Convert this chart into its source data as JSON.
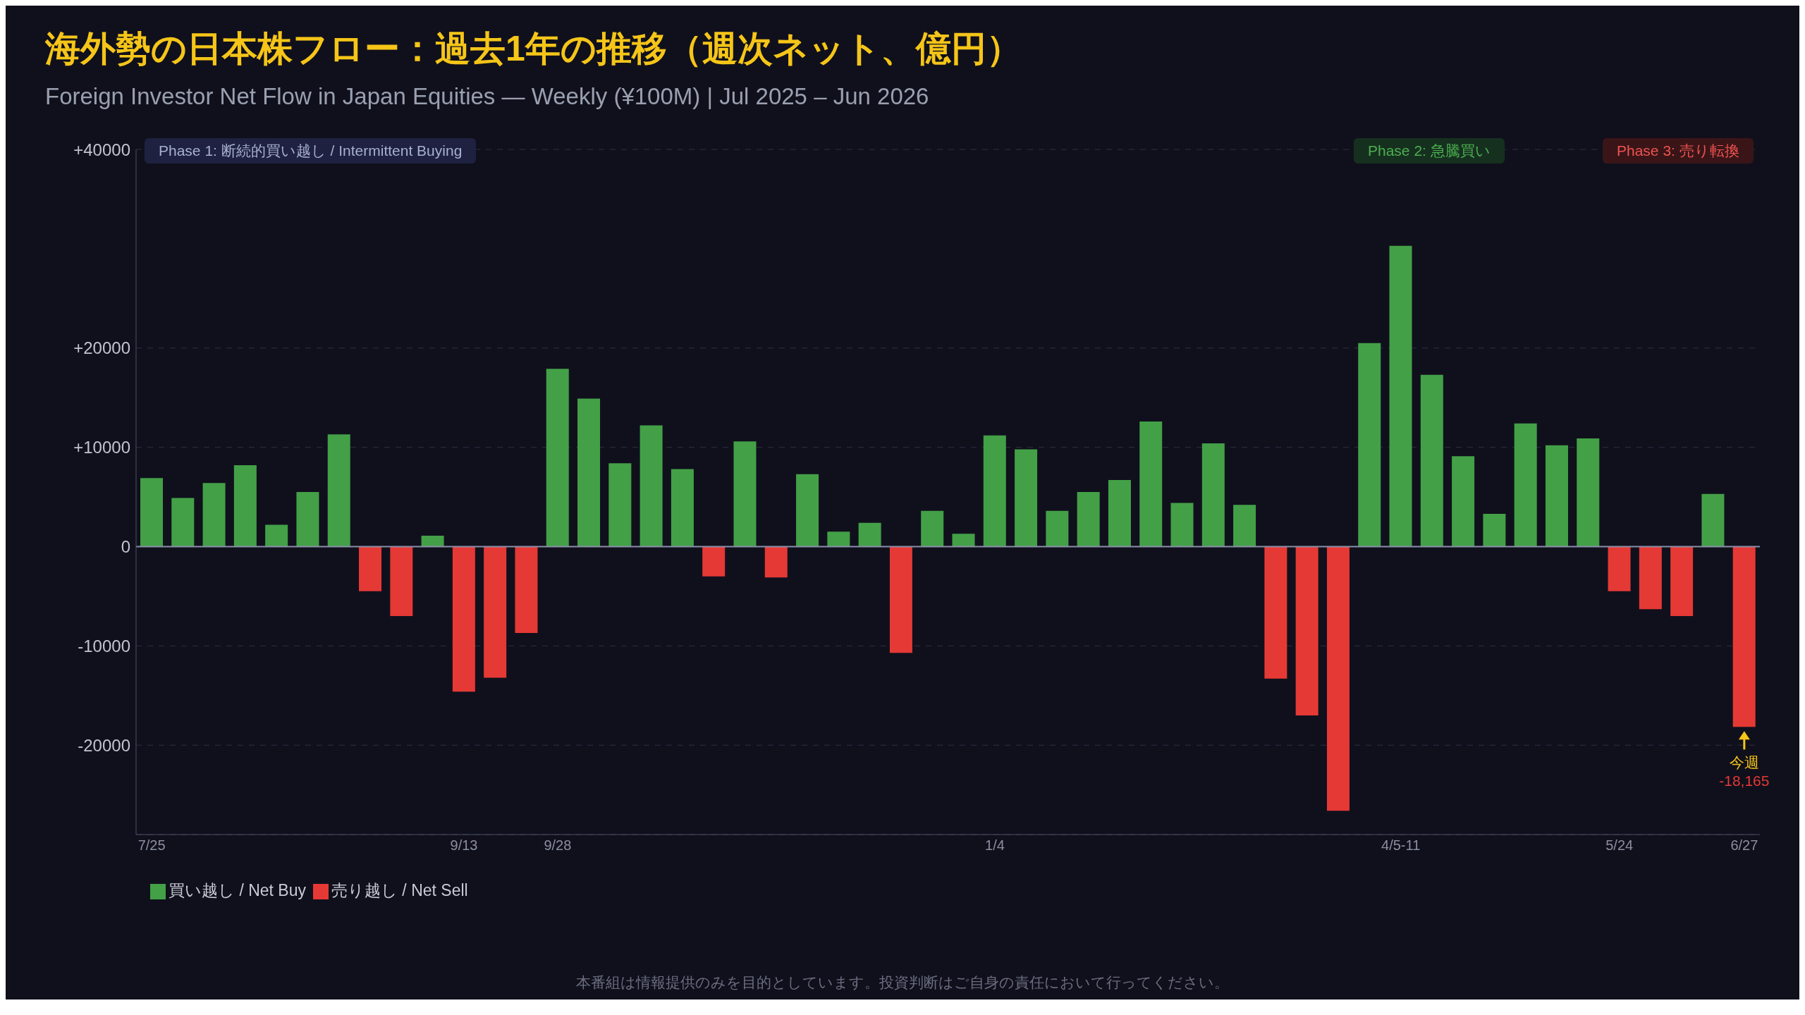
{
  "chart_data": {
    "type": "bar",
    "title": "海外勢の日本株フロー：過去1年の推移（週次ネット、億円）",
    "subtitle": "Foreign Investor Net Flow in Japan Equities — Weekly (¥100M) | Jul 2025 – Jun 2026",
    "categories": [
      "7/25",
      null,
      null,
      null,
      null,
      null,
      null,
      null,
      null,
      null,
      "9/13",
      null,
      null,
      "9/28",
      null,
      null,
      null,
      null,
      null,
      null,
      null,
      null,
      null,
      null,
      null,
      null,
      null,
      "1/4",
      null,
      null,
      null,
      null,
      null,
      null,
      null,
      null,
      null,
      null,
      null,
      null,
      "4/5-11",
      null,
      null,
      null,
      null,
      null,
      null,
      "5/24",
      null,
      null,
      null,
      "6/27"
    ],
    "series": [
      {
        "name": "買い越し / Net Buy",
        "color": "#43a047",
        "values": [
          6900,
          4900,
          6400,
          8200,
          2200,
          5500,
          11300,
          null,
          null,
          1100,
          null,
          null,
          null,
          17900,
          14900,
          8400,
          12200,
          7800,
          null,
          10600,
          null,
          7300,
          1500,
          2400,
          null,
          3600,
          1300,
          11200,
          9800,
          3600,
          5500,
          6700,
          12600,
          4400,
          10400,
          4200,
          null,
          null,
          null,
          20500,
          30300,
          17300,
          9100,
          3300,
          12400,
          10200,
          10900,
          null,
          null,
          null,
          5300,
          null
        ]
      },
      {
        "name": "売り越し / Net Sell",
        "color": "#e53935",
        "values": [
          null,
          null,
          null,
          null,
          null,
          null,
          null,
          -4500,
          -7000,
          null,
          -14600,
          -13200,
          -8700,
          null,
          null,
          null,
          null,
          null,
          -3000,
          null,
          -3100,
          null,
          null,
          null,
          -10700,
          null,
          null,
          null,
          null,
          null,
          null,
          null,
          null,
          null,
          null,
          null,
          -13300,
          -17000,
          -26600,
          null,
          null,
          null,
          null,
          null,
          null,
          null,
          null,
          -4500,
          -6300,
          -7000,
          null,
          -18165
        ],
        "value_labels": [
          null,
          null,
          null,
          null,
          null,
          null,
          null,
          null,
          null,
          null,
          null,
          null,
          null,
          null,
          null,
          null,
          null,
          null,
          null,
          null,
          null,
          null,
          null,
          null,
          null,
          null,
          null,
          null,
          null,
          null,
          null,
          null,
          null,
          null,
          null,
          null,
          null,
          null,
          null,
          null,
          null,
          null,
          null,
          null,
          null,
          null,
          null,
          null,
          null,
          null,
          null,
          "-18,165"
        ]
      }
    ],
    "stacked": true,
    "ylim": [
      -29000,
      40000
    ],
    "yticks": [
      {
        "value": 40000,
        "label": "+40000"
      },
      {
        "value": 20000,
        "label": "+20000"
      },
      {
        "value": 10000,
        "label": "+10000"
      },
      0,
      -10000,
      -20000
    ],
    "grid": "y",
    "ref_lines": [
      {
        "axis": "y",
        "value": 0,
        "color": "#8a8fa8"
      }
    ],
    "legend": "bottom left",
    "annotations": [
      "Phase 1: 断続的買い越し / Intermittent Buying",
      "Phase 2: 急騰買い",
      "Phase 3: 売り転換",
      {
        "text": "今週",
        "x": "6/27",
        "y": -18165
      },
      "本番組は情報提供のみを目的としています。投資判断はご自身の責任において行ってください。"
    ]
  }
}
